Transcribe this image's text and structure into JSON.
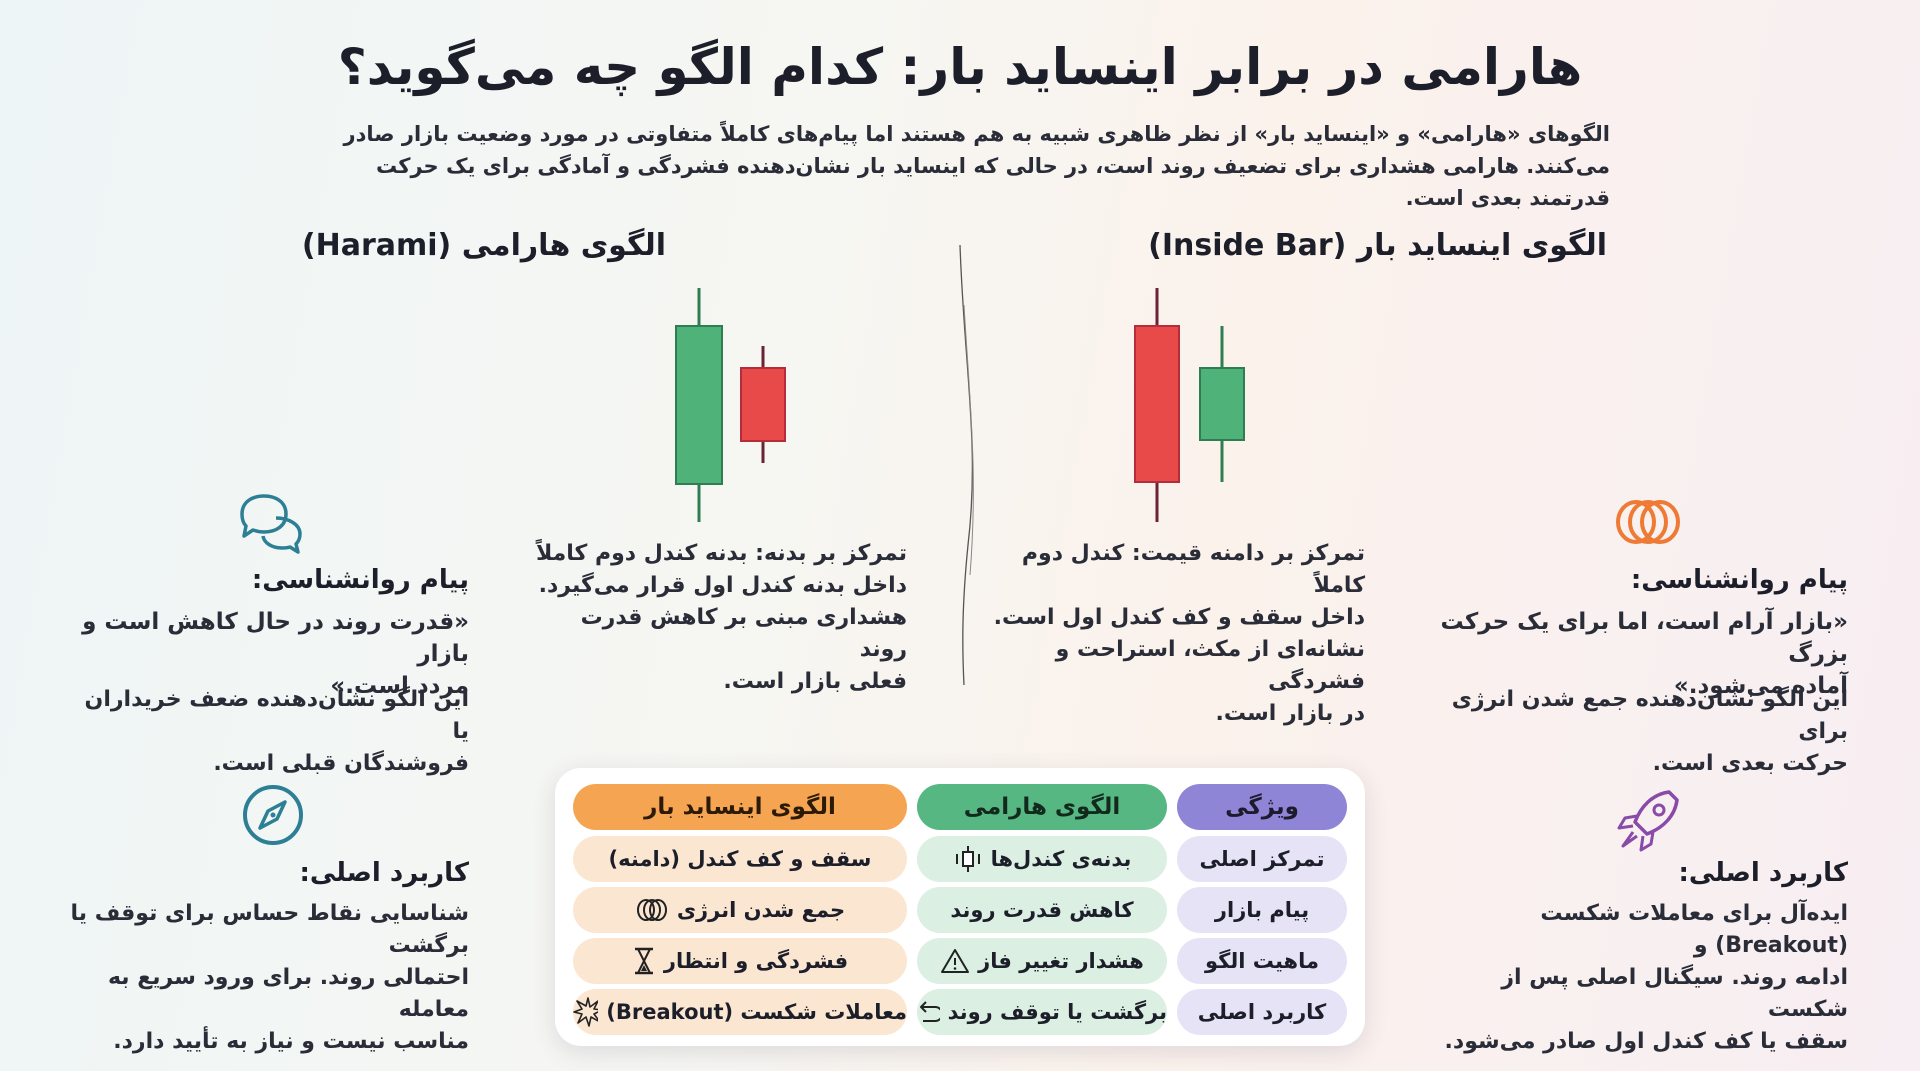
{
  "title": "هارامی در برابر اینساید بار: کدام الگو چه می‌گوید؟",
  "subtitle": "الگوهای «هارامی» و «اینساید بار» از نظر ظاهری شبیه به هم هستند اما پیام‌های کاملاً متفاوتی در مورد وضعیت بازار صادر می‌کنند. هارامی هشداری برای تضعیف روند است، در حالی که اینساید بار نشان‌دهنده فشردگی و آمادگی برای یک حرکت قدرتمند بعدی است.",
  "colors": {
    "green": "#4fb278",
    "red": "#e84a4a",
    "wick_dark": "#6b2236",
    "wick_green": "#2f7d52"
  },
  "inside_bar": {
    "heading": "الگوی اینساید بار (Inside Bar)",
    "description_lines": [
      "تمرکز بر دامنه قیمت: کندل دوم کاملاً",
      "داخل سقف و کف کندل اول است.",
      "نشانه‌ای از مکث، استراحت و فشردگی",
      "در بازار است."
    ],
    "psychology_icon": "rings-icon",
    "psychology_heading": "پیام روانشناسی:",
    "psychology_quote_lines": [
      "«بازار آرام است، اما برای یک حرکت بزرگ",
      "آماده می‌شود.»"
    ],
    "psychology_text_lines": [
      "این الگو نشان‌دهنده جمع شدن انرژی برای",
      "حرکت بعدی است."
    ],
    "usage_icon": "rocket-icon",
    "usage_heading": "کاربرد اصلی:",
    "usage_text_lines": [
      "ایده‌آل برای معاملات شکست (Breakout) و",
      "ادامه روند. سیگنال اصلی پس از شکست",
      "سقف یا کف کندل اول صادر می‌شود."
    ]
  },
  "harami": {
    "heading": "الگوی هارامی (Harami)",
    "description_lines": [
      "تمرکز بر بدنه: بدنه کندل دوم کاملاً",
      "داخل بدنه کندل اول قرار می‌گیرد.",
      "هشداری مبنی بر کاهش قدرت روند",
      "فعلی بازار است."
    ],
    "psychology_icon": "speech-bubbles-icon",
    "psychology_heading": "پیام روانشناسی:",
    "psychology_quote_lines": [
      "«قدرت روند در حال کاهش است و بازار",
      "مردد است.»"
    ],
    "psychology_text_lines": [
      "این الگو نشان‌دهنده ضعف خریداران یا",
      "فروشندگان قبلی است."
    ],
    "usage_icon": "compass-icon",
    "usage_heading": "کاربرد اصلی:",
    "usage_text_lines": [
      "شناسایی نقاط حساس برای توقف یا برگشت",
      "احتمالی روند. برای ورود سریع به معامله",
      "مناسب نیست و نیاز به تأیید دارد."
    ]
  },
  "table": {
    "headers": {
      "feature": "ویژگی",
      "harami": "الگوی هارامی",
      "inside_bar": "الگوی اینساید بار"
    },
    "rows": [
      {
        "feature": "تمرکز اصلی",
        "harami": "بدنه‌ی کندل‌ها",
        "harami_icon": "candle-icon",
        "inside_bar": "سقف و کف کندل (دامنه)",
        "inside_bar_icon": ""
      },
      {
        "feature": "پیام بازار",
        "harami": "کاهش قدرت روند",
        "harami_icon": "",
        "inside_bar": "جمع شدن انرژی",
        "inside_bar_icon": "coil-icon"
      },
      {
        "feature": "ماهیت الگو",
        "harami": "هشدار تغییر فاز",
        "harami_icon": "warning-icon",
        "inside_bar": "فشردگی و انتظار",
        "inside_bar_icon": "hourglass-icon"
      },
      {
        "feature": "کاربرد اصلی",
        "harami": "برگشت یا توقف روند",
        "harami_icon": "return-arrow-icon",
        "inside_bar": "معاملات شکست (Breakout)",
        "inside_bar_icon": "burst-icon"
      }
    ]
  }
}
